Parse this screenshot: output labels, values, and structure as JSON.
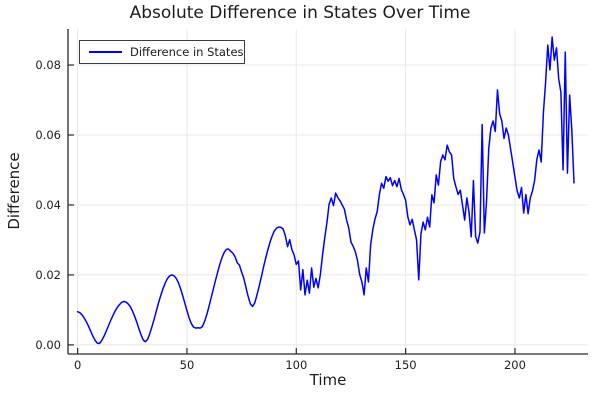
{
  "colors": {
    "line": "#0000ff",
    "grid": "#e8e8e8",
    "axis": "#2a2a2a",
    "text": "#1f1f1f",
    "background": "#ffffff"
  },
  "chart_data": {
    "type": "line",
    "title": "Absolute Difference in States Over Time",
    "xlabel": "Time",
    "ylabel": "Difference",
    "grid": true,
    "legend_position": "top-left",
    "xlim": [
      -4.4,
      233.4
    ],
    "ylim": [
      -0.0026,
      0.0903
    ],
    "xticks": {
      "values": [
        0,
        50,
        100,
        150,
        200
      ],
      "labels": [
        "0",
        "50",
        "100",
        "150",
        "200"
      ]
    },
    "yticks": {
      "values": [
        0,
        0.02,
        0.04,
        0.06,
        0.08
      ],
      "labels": [
        "0.00",
        "0.02",
        "0.04",
        "0.06",
        "0.08"
      ]
    },
    "series": [
      {
        "name": "Difference in States",
        "color": "#0000ff",
        "x_start": 0,
        "x_step": 1,
        "values": [
          0.0095,
          0.0092,
          0.0086,
          0.0077,
          0.0066,
          0.0053,
          0.0039,
          0.0025,
          0.0013,
          0.0005,
          0.0004,
          0.0012,
          0.0024,
          0.0038,
          0.0053,
          0.0068,
          0.0082,
          0.0095,
          0.0106,
          0.0114,
          0.0121,
          0.0124,
          0.0123,
          0.0118,
          0.011,
          0.0098,
          0.0083,
          0.0066,
          0.0047,
          0.0029,
          0.0014,
          0.0009,
          0.0016,
          0.0032,
          0.0052,
          0.0074,
          0.0097,
          0.012,
          0.0141,
          0.016,
          0.0176,
          0.0189,
          0.0197,
          0.02,
          0.0198,
          0.0191,
          0.0179,
          0.0162,
          0.0142,
          0.012,
          0.0098,
          0.0077,
          0.0061,
          0.0051,
          0.0048,
          0.0049,
          0.0048,
          0.0052,
          0.0066,
          0.0085,
          0.0108,
          0.0133,
          0.0158,
          0.0183,
          0.0207,
          0.023,
          0.0249,
          0.0264,
          0.0273,
          0.0274,
          0.0268,
          0.0262,
          0.0252,
          0.0235,
          0.0228,
          0.0208,
          0.019,
          0.0164,
          0.0138,
          0.0117,
          0.011,
          0.012,
          0.0142,
          0.0167,
          0.0194,
          0.0222,
          0.0248,
          0.0272,
          0.0294,
          0.0312,
          0.0326,
          0.0334,
          0.0337,
          0.0336,
          0.0331,
          0.0312,
          0.0281,
          0.0301,
          0.0272,
          0.0257,
          0.023,
          0.024,
          0.0157,
          0.0215,
          0.0143,
          0.0185,
          0.0148,
          0.022,
          0.0165,
          0.019,
          0.0163,
          0.0201,
          0.0257,
          0.0306,
          0.0349,
          0.0402,
          0.042,
          0.0398,
          0.0434,
          0.0421,
          0.0412,
          0.04,
          0.0388,
          0.0357,
          0.0334,
          0.0294,
          0.0282,
          0.0266,
          0.0241,
          0.0201,
          0.018,
          0.0143,
          0.022,
          0.018,
          0.0286,
          0.033,
          0.036,
          0.0381,
          0.043,
          0.0462,
          0.0448,
          0.0481,
          0.0468,
          0.0478,
          0.0455,
          0.047,
          0.0452,
          0.0476,
          0.0445,
          0.043,
          0.0414,
          0.0366,
          0.0343,
          0.0359,
          0.0329,
          0.03,
          0.0186,
          0.0317,
          0.0351,
          0.0329,
          0.0365,
          0.0337,
          0.0429,
          0.0406,
          0.0486,
          0.0457,
          0.0524,
          0.0543,
          0.0529,
          0.0571,
          0.0552,
          0.0543,
          0.0476,
          0.0452,
          0.043,
          0.0442,
          0.04,
          0.0357,
          0.042,
          0.038,
          0.0309,
          0.047,
          0.031,
          0.0291,
          0.0323,
          0.063,
          0.032,
          0.041,
          0.056,
          0.062,
          0.064,
          0.061,
          0.0729,
          0.066,
          0.064,
          0.059,
          0.062,
          0.06,
          0.056,
          0.052,
          0.048,
          0.044,
          0.042,
          0.045,
          0.0377,
          0.043,
          0.0375,
          0.042,
          0.044,
          0.047,
          0.053,
          0.0557,
          0.0523,
          0.0663,
          0.075,
          0.0857,
          0.0786,
          0.088,
          0.0814,
          0.0849,
          0.076,
          0.0723,
          0.05,
          0.0837,
          0.0491,
          0.0714,
          0.0614,
          0.0463
        ]
      }
    ]
  }
}
